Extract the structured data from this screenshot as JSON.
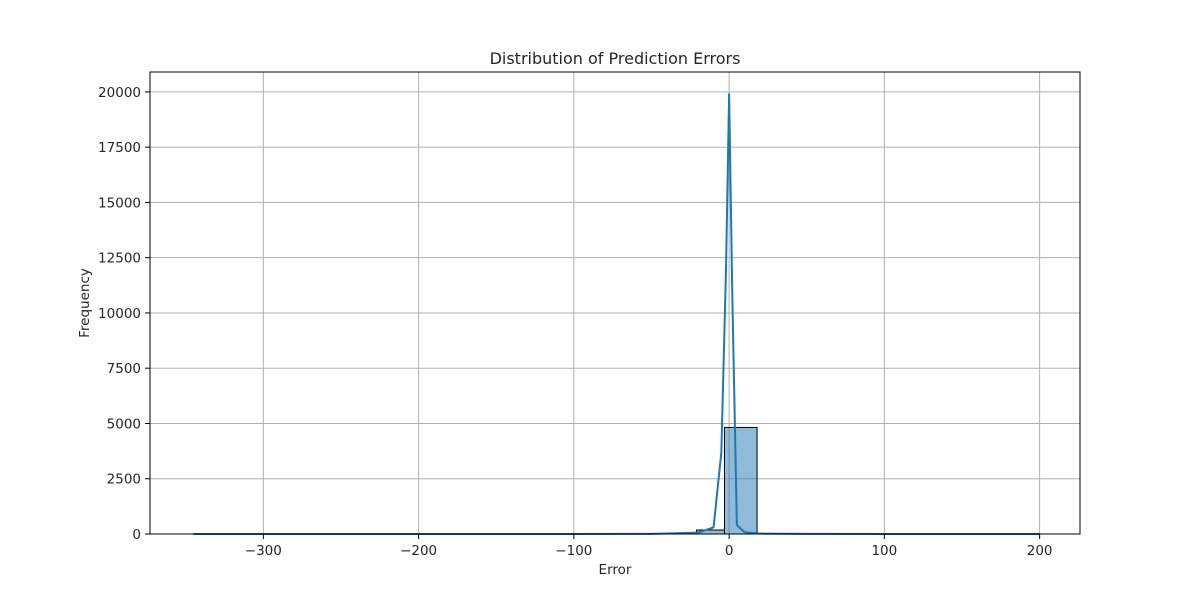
{
  "chart_data": {
    "type": "bar",
    "title": "Distribution of Prediction Errors",
    "xlabel": "Error",
    "ylabel": "Frequency",
    "xlim": [
      -373,
      226
    ],
    "ylim": [
      0,
      20900
    ],
    "xticks": [
      -300,
      -200,
      -100,
      0,
      100,
      200
    ],
    "xtick_labels": [
      "−300",
      "−200",
      "−100",
      "0",
      "100",
      "200"
    ],
    "yticks": [
      0,
      2500,
      5000,
      7500,
      10000,
      12500,
      15000,
      17500,
      20000
    ],
    "ytick_labels": [
      "0",
      "2500",
      "5000",
      "7500",
      "10000",
      "12500",
      "15000",
      "17500",
      "20000"
    ],
    "grid": true,
    "legend": "none",
    "bar_color": "#1f77b4",
    "bar_alpha": 0.5,
    "bar_edge_color": "#000000",
    "kde_color": "#1f77b4",
    "histogram": {
      "bin_edges": [
        -345,
        -327,
        -309,
        -291,
        -273,
        -255,
        -237,
        -219,
        -201,
        -183,
        -165,
        -147,
        -129,
        -111,
        -93,
        -75,
        -57,
        -39,
        -21,
        -3,
        18,
        36,
        54,
        72,
        90,
        108,
        126,
        144,
        162,
        180,
        200
      ],
      "counts": [
        1,
        0,
        0,
        0,
        0,
        0,
        0,
        0,
        0,
        0,
        0,
        0,
        0,
        0,
        0,
        3,
        5,
        10,
        180,
        4820,
        20,
        5,
        2,
        1,
        1,
        0,
        0,
        0,
        0,
        1
      ]
    },
    "kde": {
      "x": [
        -345,
        -200,
        -100,
        -50,
        -20,
        -10,
        -5,
        -2,
        0,
        2,
        5,
        10,
        20,
        50,
        100,
        200
      ],
      "y": [
        0,
        0,
        0,
        5,
        60,
        300,
        3700,
        12000,
        19900,
        11000,
        400,
        80,
        20,
        3,
        0,
        0
      ]
    }
  }
}
